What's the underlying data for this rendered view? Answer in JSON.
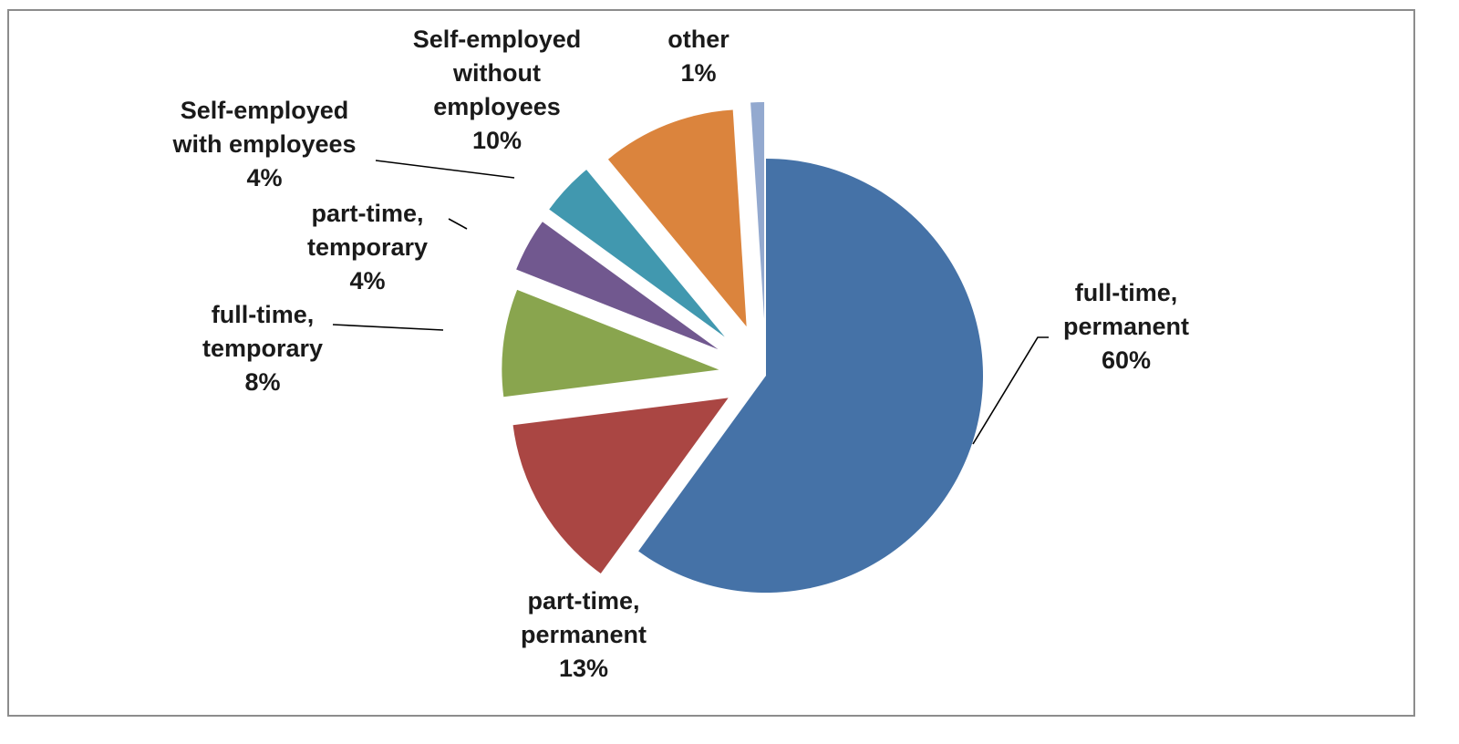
{
  "chart_data": {
    "type": "pie",
    "exploded": true,
    "slices": [
      {
        "label_lines": [
          "full-time,",
          "permanent"
        ],
        "value": 60,
        "value_label": "60%",
        "color": "#4572a7"
      },
      {
        "label_lines": [
          "part-time,",
          "permanent"
        ],
        "value": 13,
        "value_label": "13%",
        "color": "#aa4643"
      },
      {
        "label_lines": [
          "full-time,",
          "temporary"
        ],
        "value": 8,
        "value_label": "8%",
        "color": "#89a54e"
      },
      {
        "label_lines": [
          "part-time,",
          "temporary"
        ],
        "value": 4,
        "value_label": "4%",
        "color": "#71588f"
      },
      {
        "label_lines": [
          "Self-employed",
          "with employees"
        ],
        "value": 4,
        "value_label": "4%",
        "color": "#4198af"
      },
      {
        "label_lines": [
          "Self-employed",
          "without",
          "employees"
        ],
        "value": 10,
        "value_label": "10%",
        "color": "#db843d"
      },
      {
        "label_lines": [
          "other"
        ],
        "value": 1,
        "value_label": "1%",
        "color": "#93a9cf"
      }
    ]
  }
}
